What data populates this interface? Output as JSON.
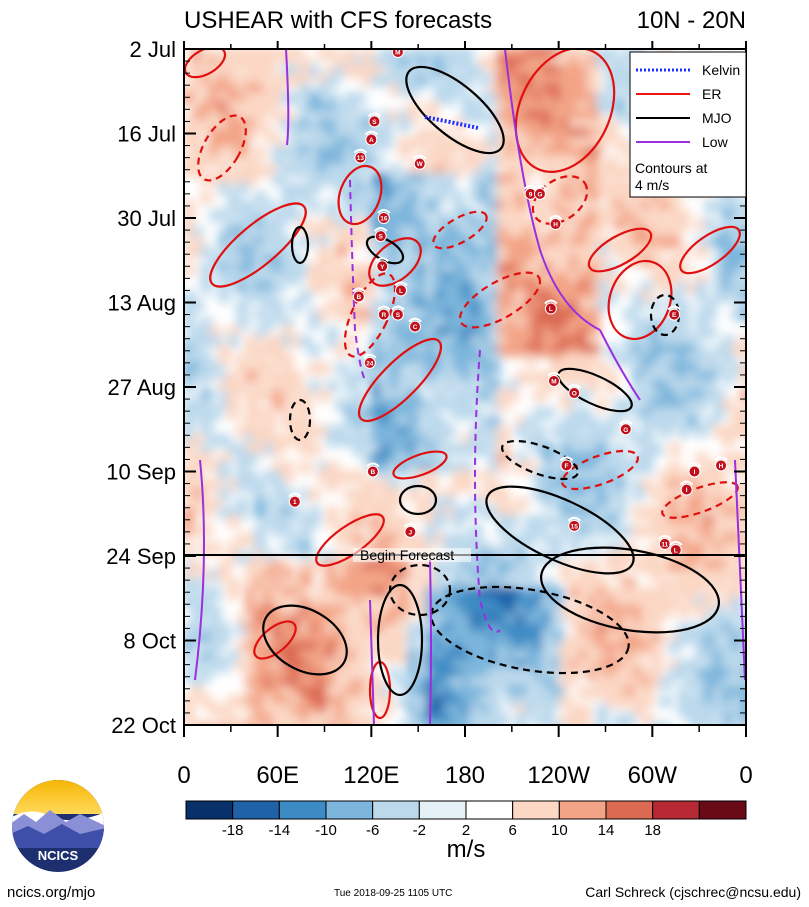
{
  "chart_data": {
    "type": "heatmap",
    "title_left": "USHEAR with CFS forecasts",
    "title_right": "10N - 20N",
    "variable": "USHEAR",
    "units": "m/s",
    "x_ticks": [
      "0",
      "60E",
      "120E",
      "180",
      "120W",
      "60W",
      "0"
    ],
    "x_tick_values": [
      0,
      60,
      120,
      180,
      240,
      300,
      360
    ],
    "xlim": [
      0,
      360
    ],
    "y_ticks": [
      "2 Jul",
      "16 Jul",
      "30 Jul",
      "13 Aug",
      "27 Aug",
      "10 Sep",
      "24 Sep",
      "8 Oct",
      "22 Oct"
    ],
    "y_tick_values": [
      0,
      14,
      28,
      42,
      56,
      70,
      84,
      98,
      112
    ],
    "ylim_days_from_2Jul": [
      0,
      112
    ],
    "forecast_start_day": 84,
    "forecast_label": "Begin Forecast",
    "colorbar": {
      "levels": [
        -18,
        -14,
        -10,
        -6,
        -2,
        2,
        6,
        10,
        14,
        18
      ],
      "tick_labels": [
        "-18",
        "-14",
        "-10",
        "-6",
        "-2",
        "2",
        "6",
        "10",
        "14",
        "18"
      ],
      "colors": [
        "#08306b",
        "#1f62a8",
        "#3d8bc4",
        "#7db6dc",
        "#bcd9ec",
        "#e6f0f7",
        "#ffffff",
        "#fbd7c4",
        "#f3a487",
        "#dc6a52",
        "#b62833",
        "#6b0a17"
      ]
    },
    "legend": {
      "entries": [
        {
          "label": "Kelvin",
          "color": "#1a2eff",
          "style": "dotted"
        },
        {
          "label": "ER",
          "color": "#ee1111",
          "style": "solid"
        },
        {
          "label": "MJO",
          "color": "#000000",
          "style": "solid"
        },
        {
          "label": "Low",
          "color": "#9a2fe0",
          "style": "solid"
        }
      ],
      "note": "Contours at\n4 m/s",
      "note_lines": [
        "Contours at",
        "4 m/s"
      ],
      "placement": "top-right"
    },
    "storms": [
      {
        "label": "M",
        "lon": 137,
        "day": 0.5
      },
      {
        "label": "S",
        "lon": 122,
        "day": 12
      },
      {
        "label": "A",
        "lon": 120,
        "day": 15
      },
      {
        "label": "13",
        "lon": 113,
        "day": 18
      },
      {
        "label": "W",
        "lon": 151,
        "day": 19
      },
      {
        "label": "9",
        "lon": 222,
        "day": 24
      },
      {
        "label": "G",
        "lon": 228,
        "day": 24
      },
      {
        "label": "16",
        "lon": 128,
        "day": 28
      },
      {
        "label": "H",
        "lon": 238,
        "day": 29
      },
      {
        "label": "S",
        "lon": 126,
        "day": 31
      },
      {
        "label": "Y",
        "lon": 127,
        "day": 36
      },
      {
        "label": "B",
        "lon": 112,
        "day": 41
      },
      {
        "label": "L",
        "lon": 139,
        "day": 40
      },
      {
        "label": "R",
        "lon": 128,
        "day": 44
      },
      {
        "label": "S",
        "lon": 137,
        "day": 44
      },
      {
        "label": "C",
        "lon": 148,
        "day": 46
      },
      {
        "label": "L",
        "lon": 235,
        "day": 43
      },
      {
        "label": "E",
        "lon": 314,
        "day": 44
      },
      {
        "label": "24",
        "lon": 119,
        "day": 52
      },
      {
        "label": "M",
        "lon": 237,
        "day": 55
      },
      {
        "label": "O",
        "lon": 250,
        "day": 57
      },
      {
        "label": "G",
        "lon": 283,
        "day": 63
      },
      {
        "label": "B",
        "lon": 121,
        "day": 70
      },
      {
        "label": "F",
        "lon": 245,
        "day": 69
      },
      {
        "label": "I",
        "lon": 327,
        "day": 70
      },
      {
        "label": "H",
        "lon": 344,
        "day": 69
      },
      {
        "label": "I",
        "lon": 322,
        "day": 73
      },
      {
        "label": "1",
        "lon": 71,
        "day": 75
      },
      {
        "label": "J",
        "lon": 145,
        "day": 80
      },
      {
        "label": "15",
        "lon": 250,
        "day": 79
      },
      {
        "label": "11",
        "lon": 308,
        "day": 82
      },
      {
        "label": "L",
        "lon": 315,
        "day": 83
      }
    ]
  }
}
